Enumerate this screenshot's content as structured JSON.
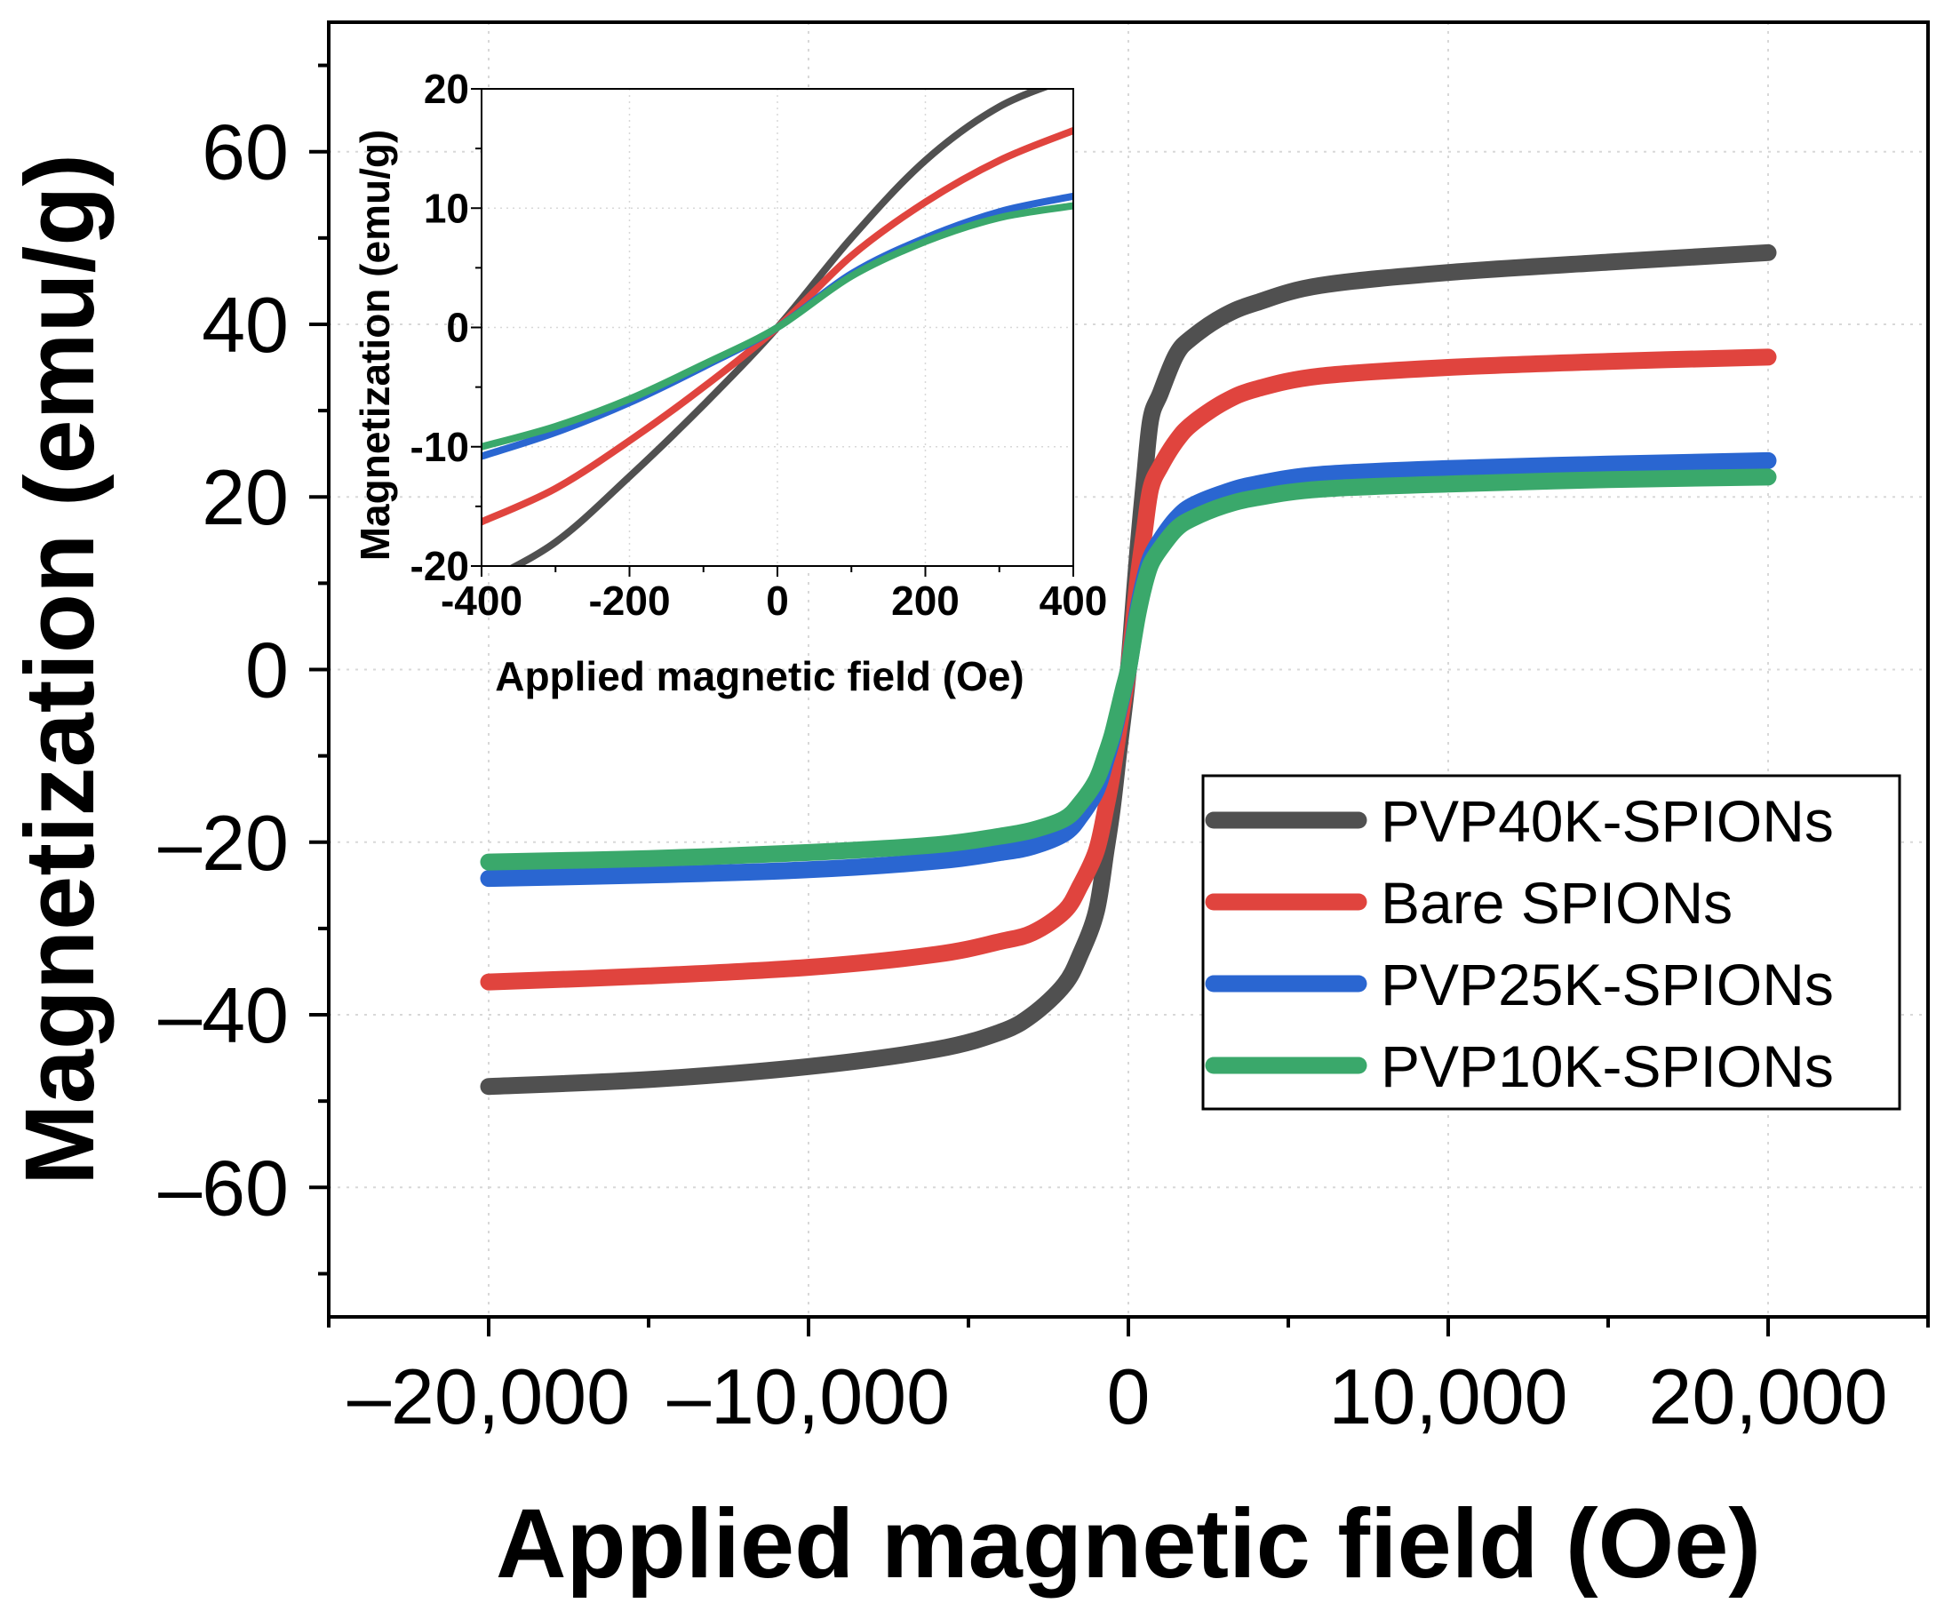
{
  "chart_data": [
    {
      "type": "line",
      "id": "main",
      "title": "",
      "xlabel": "Applied magnetic field (Oe)",
      "ylabel": "Magnetization (emu/g)",
      "xlim": [
        -25000,
        25000
      ],
      "ylim": [
        -75,
        75
      ],
      "xticks": [
        -20000,
        -10000,
        0,
        10000,
        20000
      ],
      "xtick_labels": [
        "–20,000",
        "–10,000",
        "0",
        "10,000",
        "20,000"
      ],
      "yticks": [
        -60,
        -40,
        -20,
        0,
        20,
        40,
        60
      ],
      "ytick_labels": [
        "–60",
        "–40",
        "–20",
        "0",
        "20",
        "40",
        "60"
      ],
      "grid": true,
      "legend_position": "lower-right",
      "x": [
        -20000,
        -15000,
        -10000,
        -6000,
        -4000,
        -3000,
        -2000,
        -1500,
        -1000,
        -700,
        -500,
        -300,
        -150,
        0,
        150,
        300,
        500,
        700,
        1000,
        1500,
        2000,
        3000,
        4000,
        6000,
        10000,
        15000,
        20000
      ],
      "series": [
        {
          "name": "PVP40K-SPIONs",
          "color": "#505050",
          "values": [
            -48.3,
            -47.5,
            -46,
            -44,
            -42,
            -40,
            -36.5,
            -33,
            -28,
            -21,
            -16,
            -9.5,
            -5,
            0,
            7,
            14,
            22,
            29,
            32,
            36.5,
            38.5,
            41,
            42.5,
            44.5,
            46,
            47.2,
            48.3
          ]
        },
        {
          "name": "Bare SPIONs",
          "color": "#e0443e",
          "values": [
            -36.2,
            -35.5,
            -34.5,
            -33,
            -31.5,
            -30.5,
            -28,
            -25,
            -21,
            -16,
            -12,
            -7,
            -3.5,
            0,
            5,
            10.5,
            16,
            21,
            23.5,
            26.5,
            28.5,
            31,
            32.5,
            34,
            35,
            35.7,
            36.2
          ]
        },
        {
          "name": "PVP25K-SPIONs",
          "color": "#2a66d1",
          "values": [
            -24.2,
            -23.8,
            -23.2,
            -22.2,
            -21.2,
            -20.5,
            -19,
            -17,
            -14,
            -10.5,
            -8,
            -4.8,
            -2.4,
            0,
            3.5,
            7,
            10.5,
            13,
            15,
            17.5,
            19,
            20.5,
            21.5,
            22.6,
            23.3,
            23.8,
            24.2
          ]
        },
        {
          "name": "PVP10K-SPIONs",
          "color": "#3aa86b",
          "values": [
            -22.3,
            -21.9,
            -21.2,
            -20.3,
            -19.3,
            -18.6,
            -17.3,
            -15.5,
            -12.8,
            -9.8,
            -7.5,
            -4.5,
            -2.2,
            0,
            3.3,
            6.5,
            9.8,
            12.2,
            14,
            16.3,
            17.5,
            19,
            19.9,
            20.9,
            21.5,
            22,
            22.3
          ]
        }
      ]
    },
    {
      "type": "line",
      "id": "inset",
      "title": "",
      "xlabel": "Applied magnetic field (Oe)",
      "ylabel": "Magnetization (emu/g)",
      "xlim": [
        -400,
        400
      ],
      "ylim": [
        -20,
        20
      ],
      "xticks": [
        -400,
        -200,
        0,
        200,
        400
      ],
      "xtick_labels": [
        "-400",
        "-200",
        "0",
        "200",
        "400"
      ],
      "yticks": [
        -20,
        -10,
        0,
        10,
        20
      ],
      "ytick_labels": [
        "-20",
        "-10",
        "0",
        "10",
        "20"
      ],
      "grid": true,
      "x": [
        -400,
        -300,
        -200,
        -100,
        0,
        100,
        200,
        300,
        400
      ],
      "series": [
        {
          "name": "PVP40K-SPIONs",
          "color": "#505050",
          "values": [
            -21.5,
            -18,
            -12.5,
            -6.5,
            0,
            7.5,
            14,
            18.5,
            21
          ]
        },
        {
          "name": "Bare SPIONs",
          "color": "#e0443e",
          "values": [
            -16.3,
            -13.5,
            -9.5,
            -5,
            0,
            6,
            10.5,
            14,
            16.5
          ]
        },
        {
          "name": "PVP25K-SPIONs",
          "color": "#2a66d1",
          "values": [
            -10.8,
            -8.8,
            -6.3,
            -3.3,
            0,
            4.5,
            7.5,
            9.7,
            11
          ]
        },
        {
          "name": "PVP10K-SPIONs",
          "color": "#3aa86b",
          "values": [
            -10,
            -8.3,
            -6,
            -3.1,
            0,
            4.3,
            7.2,
            9.2,
            10.2
          ]
        }
      ]
    }
  ],
  "legend": {
    "items": [
      {
        "label": "PVP40K-SPIONs",
        "color": "#505050"
      },
      {
        "label": "Bare SPIONs",
        "color": "#e0443e"
      },
      {
        "label": "PVP25K-SPIONs",
        "color": "#2a66d1"
      },
      {
        "label": "PVP10K-SPIONs",
        "color": "#3aa86b"
      }
    ]
  }
}
